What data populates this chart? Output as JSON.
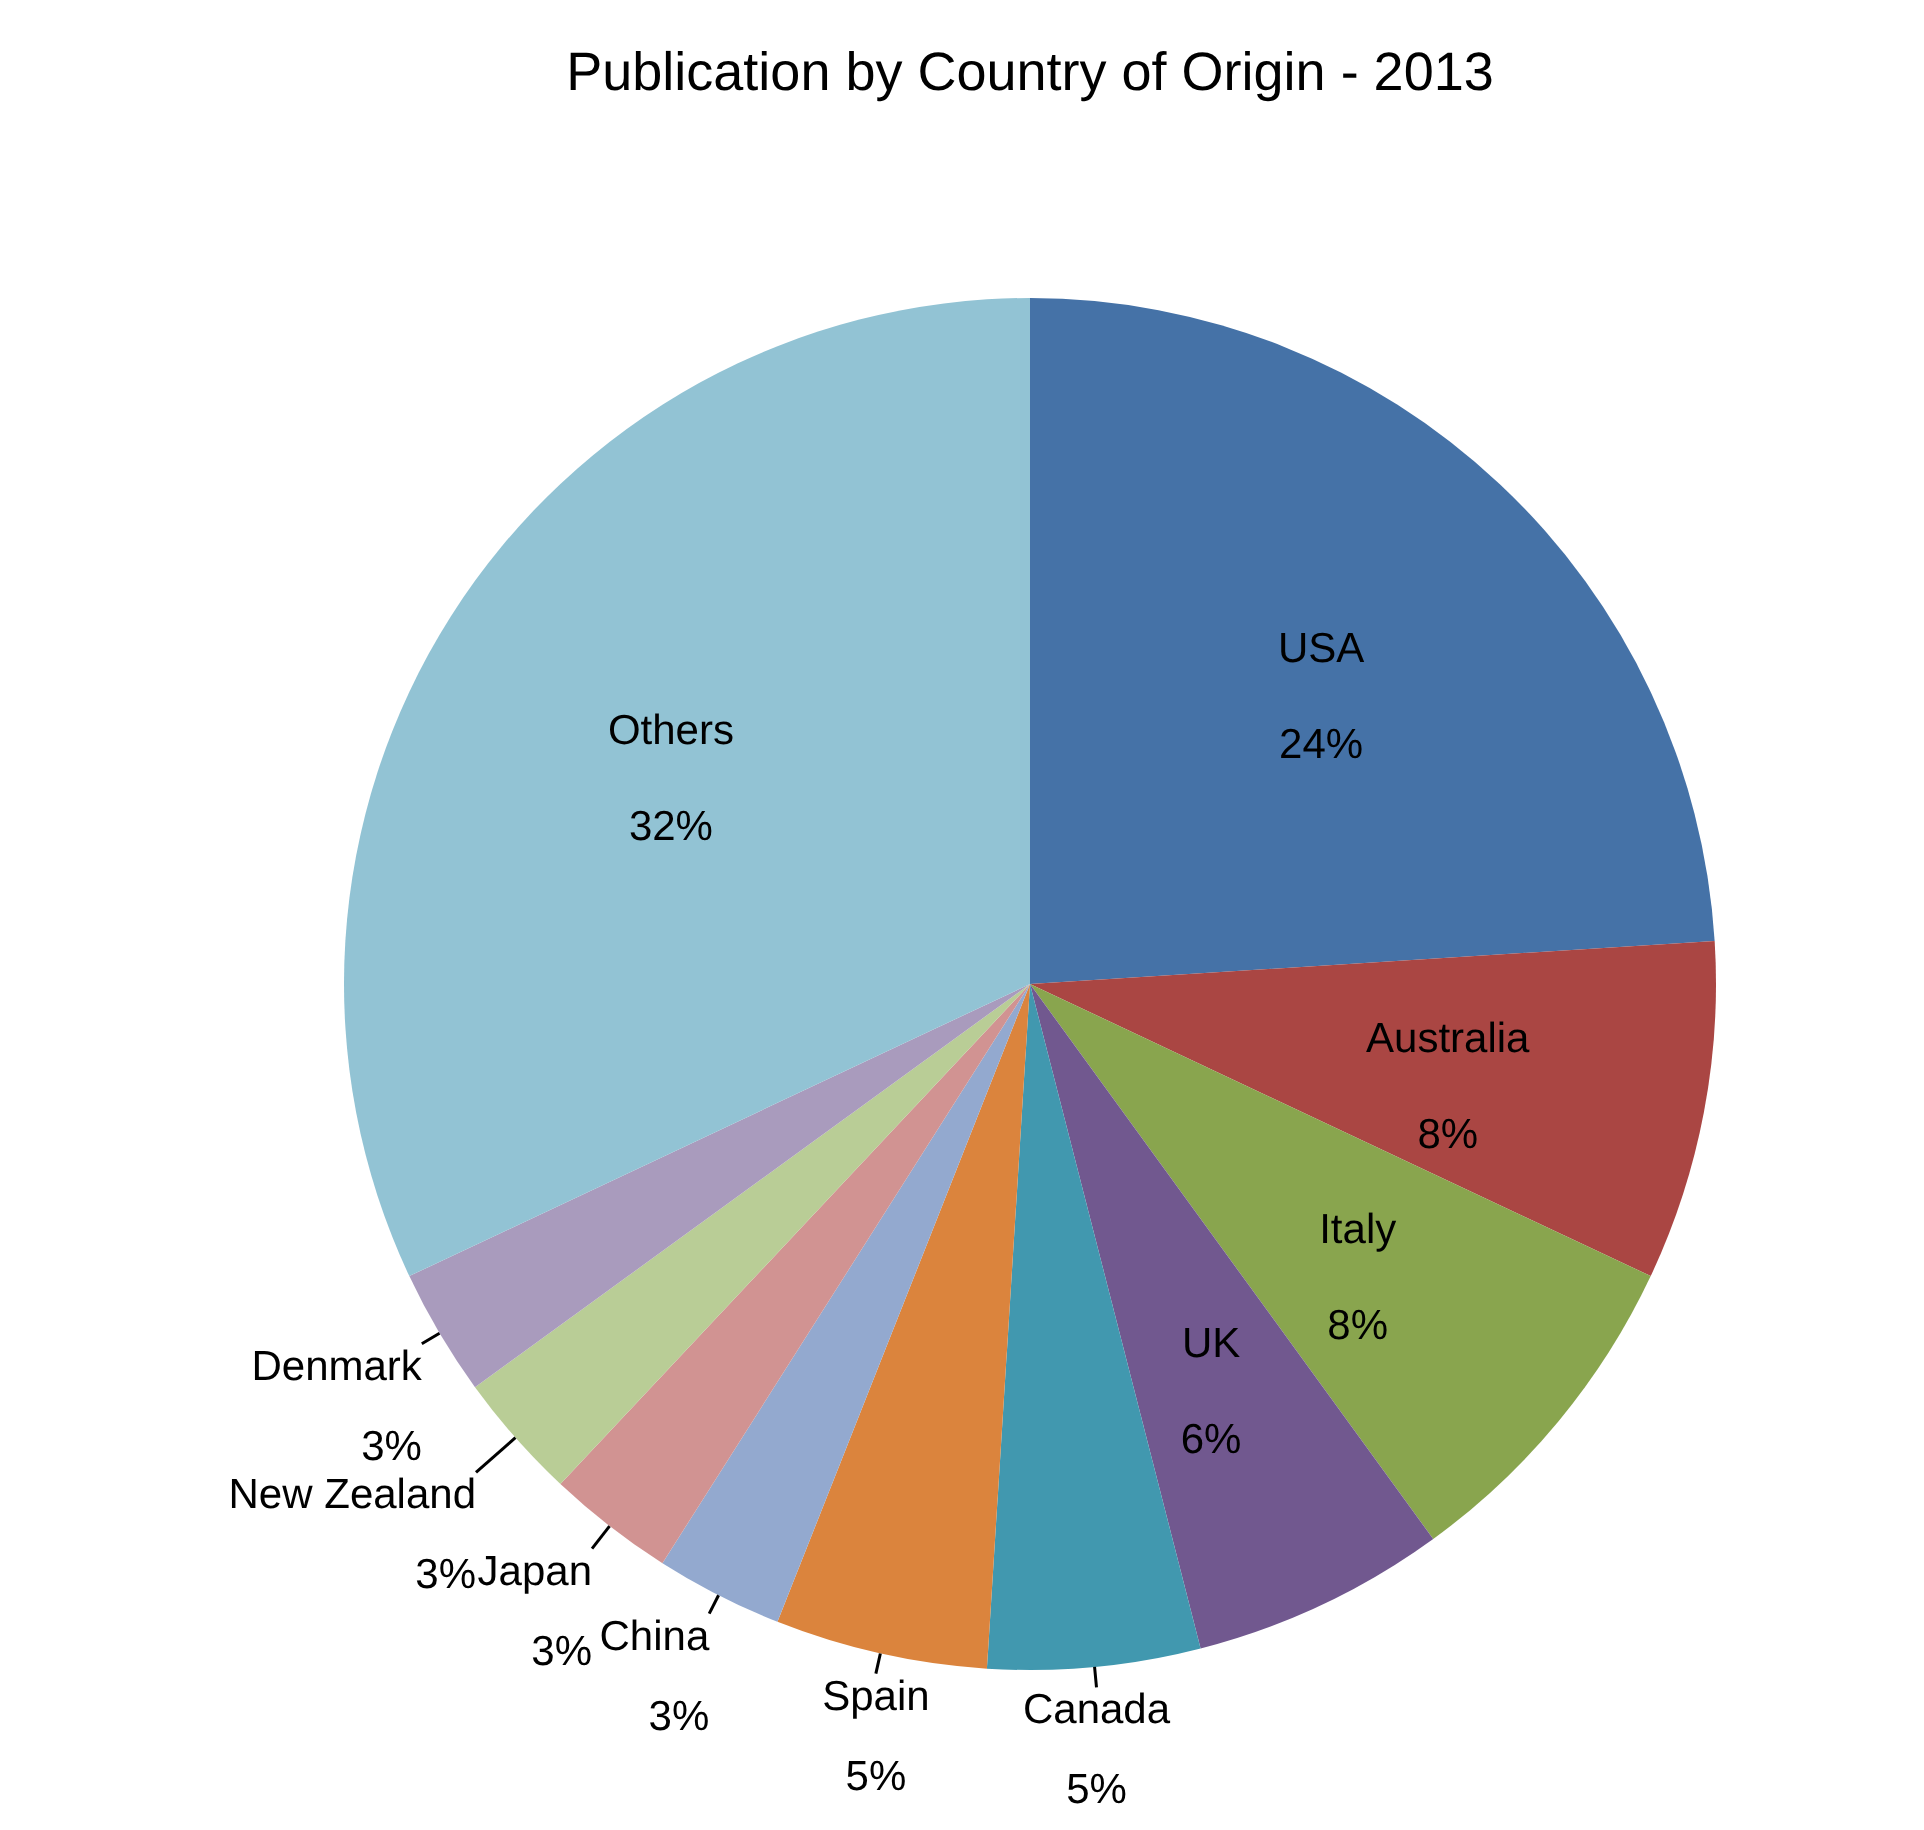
{
  "chart_data": {
    "type": "pie",
    "title": "Publication by Country of Origin - 2013",
    "categories": [
      "USA",
      "Australia",
      "Italy",
      "UK",
      "Canada",
      "Spain",
      "China",
      "Japan",
      "New Zealand",
      "Denmark",
      "Others"
    ],
    "values": [
      24,
      8,
      8,
      6,
      5,
      5,
      3,
      3,
      3,
      3,
      32
    ],
    "value_labels": [
      "24%",
      "8%",
      "8%",
      "6%",
      "5%",
      "5%",
      "3%",
      "3%",
      "3%",
      "3%",
      "32%"
    ],
    "colors": [
      "#4572a7",
      "#aa4643",
      "#89a54e",
      "#71588f",
      "#4198af",
      "#db843d",
      "#93a9cf",
      "#d19392",
      "#b9cd96",
      "#a99bbd",
      "#92c3d4"
    ],
    "legend": false
  }
}
